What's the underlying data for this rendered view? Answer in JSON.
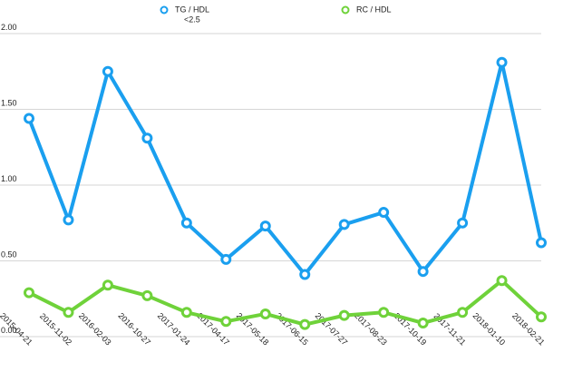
{
  "chart_data": {
    "type": "line",
    "title": "",
    "xlabel": "",
    "ylabel": "",
    "categories": [
      "2015-04-21",
      "2015-11-02",
      "2016-02-03",
      "2016-10-27",
      "2017-01-24",
      "2017-04-17",
      "2017-05-18",
      "2017-06-15",
      "2017-07-27",
      "2017-08-23",
      "2017-10-19",
      "2017-11-21",
      "2018-01-10",
      "2018-02-21"
    ],
    "ylim": [
      0,
      2.0
    ],
    "yticks": [
      "0.00",
      "0.50",
      "1.00",
      "1.50",
      "2.00"
    ],
    "grid": true,
    "legend_position": "top",
    "series": [
      {
        "name": "TG / HDL",
        "name_line2": "<2.5",
        "color": "#1a9fef",
        "values": [
          1.44,
          0.77,
          1.75,
          1.31,
          0.75,
          0.51,
          0.73,
          0.41,
          0.74,
          0.82,
          0.43,
          0.75,
          1.81,
          0.62
        ]
      },
      {
        "name": "RC / HDL",
        "color": "#6fd23a",
        "values": [
          0.29,
          0.16,
          0.34,
          0.27,
          0.16,
          0.1,
          0.15,
          0.08,
          0.14,
          0.16,
          0.09,
          0.16,
          0.37,
          0.13
        ]
      }
    ]
  }
}
